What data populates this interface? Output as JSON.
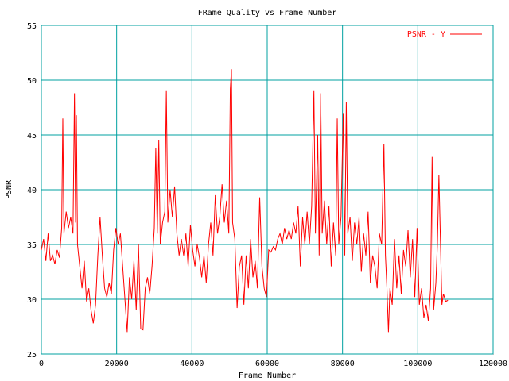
{
  "chart_data": {
    "type": "line",
    "title": "FRame Quality vs Frame Number",
    "x_label": "Frame Number",
    "y_label": "PSNR",
    "xlim": [
      0,
      120000
    ],
    "ylim": [
      25,
      55
    ],
    "xticks": [
      0,
      20000,
      40000,
      60000,
      80000,
      100000,
      120000
    ],
    "yticks": [
      25,
      30,
      35,
      40,
      45,
      50,
      55
    ],
    "grid": true,
    "grid_color": "#00a0a0",
    "legend": "top-right",
    "x": [
      0,
      600,
      1200,
      1800,
      2400,
      3000,
      3600,
      4200,
      4800,
      5400,
      5700,
      6000,
      6600,
      7200,
      7800,
      8400,
      8800,
      9100,
      9300,
      9600,
      10200,
      10800,
      11400,
      12000,
      12600,
      13200,
      13800,
      14400,
      15000,
      15600,
      16200,
      16800,
      17400,
      18000,
      18600,
      19200,
      19800,
      20400,
      21000,
      21600,
      22200,
      22800,
      23400,
      24000,
      24600,
      25200,
      25800,
      26400,
      27000,
      27600,
      28200,
      28800,
      29400,
      30000,
      30400,
      30800,
      31200,
      31600,
      32200,
      32800,
      33200,
      33600,
      34200,
      34800,
      35400,
      36000,
      36600,
      37200,
      37800,
      38400,
      39000,
      39600,
      40200,
      40800,
      41400,
      42000,
      42600,
      43200,
      43800,
      44400,
      45000,
      45600,
      46200,
      46800,
      47400,
      48000,
      48600,
      49200,
      49800,
      50200,
      50500,
      50800,
      51400,
      52000,
      52600,
      53200,
      53800,
      54400,
      55000,
      55600,
      56200,
      56800,
      57400,
      58000,
      58600,
      59200,
      59800,
      60400,
      61000,
      61600,
      62200,
      62800,
      63400,
      64000,
      64600,
      65200,
      65800,
      66400,
      67000,
      67600,
      68200,
      68800,
      69400,
      70000,
      70600,
      71200,
      71800,
      72400,
      72800,
      73400,
      73800,
      74200,
      74600,
      75200,
      75800,
      76400,
      77000,
      77600,
      78200,
      78600,
      79000,
      79600,
      80200,
      80600,
      81000,
      81400,
      82000,
      82600,
      83200,
      83800,
      84400,
      85000,
      85600,
      86200,
      86800,
      87400,
      88000,
      88600,
      89200,
      89800,
      90400,
      91000,
      91400,
      91800,
      92200,
      92600,
      93200,
      93800,
      94400,
      95000,
      95600,
      96200,
      96800,
      97400,
      98000,
      98600,
      99200,
      99800,
      100400,
      101000,
      101600,
      102200,
      102800,
      103400,
      103800,
      104200,
      104800,
      105200,
      105600,
      106000,
      106400,
      106800,
      107400,
      108000
    ],
    "series": [
      {
        "name": "PSNR - Y",
        "color": "#ff0000",
        "values": [
          34.5,
          35.5,
          33.5,
          36,
          33.5,
          34,
          33.2,
          34.5,
          33.8,
          36.5,
          46.5,
          36,
          38,
          36.5,
          37.5,
          36,
          48.8,
          37,
          46.8,
          35,
          33,
          31,
          33.5,
          29.8,
          31,
          29,
          27.8,
          29.5,
          34,
          37.5,
          34,
          31,
          30.2,
          31.5,
          30.5,
          34.5,
          36.5,
          35,
          36,
          33,
          30,
          27,
          32,
          30,
          33.5,
          29,
          35,
          27.3,
          27.2,
          31,
          32,
          30.5,
          33,
          36.5,
          43.8,
          36,
          44.5,
          35,
          37,
          38,
          49,
          37,
          40,
          37.5,
          40.3,
          36,
          34,
          35.5,
          34,
          36,
          33,
          36.8,
          34.5,
          33,
          35,
          33.8,
          32,
          34,
          31.5,
          35,
          37,
          34,
          39.5,
          36,
          37.5,
          40.5,
          37,
          39,
          36,
          49.2,
          51,
          37,
          35.5,
          29.2,
          33,
          34,
          29.5,
          34,
          31,
          35.5,
          32,
          33.5,
          31,
          39.3,
          33,
          31,
          30.2,
          34.5,
          34.3,
          34.8,
          34.5,
          35.5,
          36,
          35,
          36.5,
          35.5,
          36.3,
          35.5,
          37,
          36,
          38.5,
          33,
          37.5,
          35,
          38,
          35,
          38.5,
          49,
          36,
          45,
          34,
          48.8,
          36,
          39,
          35,
          38.5,
          33,
          37,
          34,
          46.5,
          35,
          37.5,
          47,
          34,
          48,
          36,
          37.5,
          33.5,
          37,
          35,
          37.5,
          32.5,
          36,
          34,
          38,
          31.5,
          34,
          33,
          31,
          36,
          35,
          44.2,
          34,
          31,
          27,
          31,
          29.5,
          35.5,
          31,
          34,
          30.5,
          34.5,
          33,
          36.3,
          32,
          35.5,
          30.2,
          36.5,
          29.5,
          31,
          28.3,
          29.5,
          28,
          31,
          43,
          29,
          31.5,
          35,
          41.3,
          35.5,
          29.5,
          30.5,
          29.8,
          29.9
        ]
      }
    ]
  }
}
